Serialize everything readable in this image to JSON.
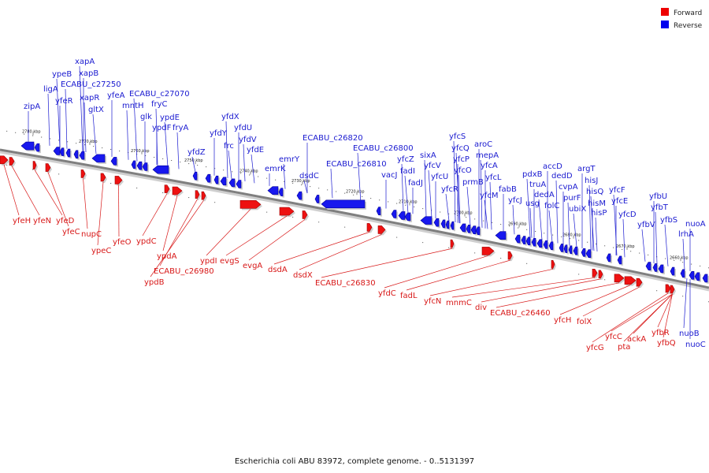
{
  "caption": "Escherichia coli ABU 83972, complete genome. - 0..5131397",
  "legend": [
    {
      "label": "Forward",
      "color": "#ee0000"
    },
    {
      "label": "Reverse",
      "color": "#0000ee"
    }
  ],
  "colors": {
    "forward_fill": "#ee1111",
    "forward_dark": "#a00000",
    "reverse_fill": "#1818ee",
    "reverse_dark": "#00009a",
    "forward_label": "#d81818",
    "reverse_label": "#1a1ad0",
    "backbone": "#7f7f7f"
  },
  "kbp_markers": [
    "2780 kbp",
    "2770 kbp",
    "2760 kbp",
    "2750 kbp",
    "2740 kbp",
    "2730 kbp",
    "2720 kbp",
    "2710 kbp",
    "2700 kbp",
    "2690 kbp",
    "2680 kbp",
    "2670 kbp",
    "2660 kbp"
  ],
  "reverse_labels": [
    "zipA",
    "ligA",
    "ypeB",
    "yfeR",
    "ECABU_c27250",
    "xapA",
    "xapB",
    "xapR",
    "gltX",
    "yfeA",
    "mntH",
    "ECABU_c27070",
    "glk",
    "fryC",
    "ypdE",
    "ypdF",
    "fryA",
    "yfdZ",
    "yfdY",
    "yfdX",
    "frc",
    "yfdU",
    "yfdV",
    "yfdE",
    "emrK",
    "emrY",
    "dsdC",
    "ECABU_c26820",
    "ECABU_c26810",
    "ECABU_c26800",
    "vacJ",
    "yfcZ",
    "fadI",
    "fadJ",
    "sixA",
    "yfcV",
    "yfcU",
    "yfcS",
    "yfcQ",
    "yfcP",
    "yfcO",
    "yfcR",
    "aroC",
    "mepA",
    "prmB",
    "yfcA",
    "yfcL",
    "yfcM",
    "fabB",
    "yfcJ",
    "pdxB",
    "truA",
    "usg",
    "dedA",
    "accD",
    "dedD",
    "folC",
    "cvpA",
    "purF",
    "ubiX",
    "argT",
    "hisJ",
    "hisQ",
    "hisM",
    "hisP",
    "yfcF",
    "yfcE",
    "yfcD",
    "yfbV",
    "yfbU",
    "yfbT",
    "yfbS",
    "nuoA",
    "lrhA",
    "nuoB",
    "nuoC"
  ],
  "forward_labels": [
    "yfeH",
    "yfeN",
    "yfeD",
    "yfeC",
    "nupC",
    "ypeC",
    "yfeO",
    "ypdC",
    "ypdA",
    "ECABU_c26980",
    "ypdB",
    "ypdI",
    "evgS",
    "evgA",
    "dsdA",
    "dsdX",
    "ECABU_c26830",
    "yfdC",
    "fadL",
    "yfcN",
    "mnmC",
    "div",
    "ECABU_c26460",
    "yfcH",
    "folX",
    "yfcG",
    "yfcC",
    "pta",
    "ackA",
    "yfbR",
    "yfbQ"
  ]
}
